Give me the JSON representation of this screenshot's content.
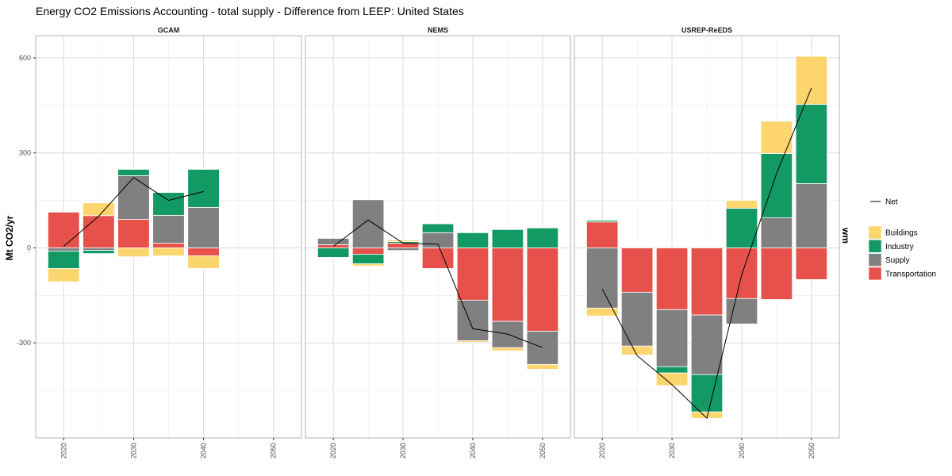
{
  "chart_data": {
    "type": "bar",
    "title": "Energy CO2 Emissions Accounting - total supply  - Difference from LEEP: United States",
    "ylabel": "Mt CO2/yr",
    "right_strip_label": "wm",
    "ylim": [
      -600,
      670
    ],
    "yticks": [
      -300,
      0,
      300,
      600
    ],
    "xlim": [
      2016,
      2054
    ],
    "xticks": [
      2020,
      2030,
      2040,
      2050
    ],
    "xtick_labels": [
      "2020",
      "2030",
      "2040",
      "2050"
    ],
    "grid": true,
    "legend_position": "right",
    "colors": {
      "Buildings": "#FCD56E",
      "Industry": "#139A64",
      "Supply": "#808080",
      "Transportation": "#E6524B",
      "Net": "#000000"
    },
    "legend": {
      "line_entries": [
        "Net"
      ],
      "fill_entries": [
        "Buildings",
        "Industry",
        "Supply",
        "Transportation"
      ]
    },
    "panels": [
      {
        "name": "GCAM",
        "years": [
          2020,
          2025,
          2030,
          2035,
          2040
        ],
        "series": [
          {
            "name": "Transportation",
            "values": [
              113,
              102,
              90,
              15,
              -25
            ]
          },
          {
            "name": "Supply",
            "values": [
              -10,
              -8,
              138,
              88,
              128
            ]
          },
          {
            "name": "Industry",
            "values": [
              -55,
              -10,
              20,
              72,
              120
            ]
          },
          {
            "name": "Buildings",
            "values": [
              -42,
              40,
              -28,
              -25,
              -40
            ]
          }
        ],
        "net": [
          5,
          100,
          222,
          150,
          178
        ]
      },
      {
        "name": "NEMS",
        "years": [
          2020,
          2025,
          2030,
          2035,
          2040,
          2045,
          2050
        ],
        "series": [
          {
            "name": "Transportation",
            "values": [
              10,
              -20,
              15,
              -65,
              -165,
              -232,
              -263
            ]
          },
          {
            "name": "Supply",
            "values": [
              20,
              152,
              -8,
              48,
              -128,
              -83,
              -105
            ]
          },
          {
            "name": "Industry",
            "values": [
              -30,
              -30,
              5,
              28,
              48,
              58,
              63
            ]
          },
          {
            "name": "Buildings",
            "values": [
              0,
              -7,
              5,
              0,
              -5,
              -10,
              -15
            ]
          }
        ],
        "net": [
          5,
          88,
          15,
          12,
          -255,
          -272,
          -315
        ]
      },
      {
        "name": "USREP-ReEDS",
        "years": [
          2020,
          2025,
          2030,
          2035,
          2040,
          2045,
          2050
        ],
        "series": [
          {
            "name": "Transportation",
            "values": [
              82,
              -140,
              -195,
              -212,
              -160,
              -163,
              -100
            ]
          },
          {
            "name": "Supply",
            "values": [
              -190,
              -170,
              -180,
              -188,
              -80,
              95,
              203
            ]
          },
          {
            "name": "Industry",
            "values": [
              5,
              0,
              -20,
              -118,
              125,
              203,
              250
            ]
          },
          {
            "name": "Buildings",
            "values": [
              -25,
              -28,
              -40,
              -20,
              25,
              102,
              152
            ]
          }
        ],
        "net": [
          -130,
          -340,
          -432,
          -538,
          -85,
          235,
          505
        ]
      }
    ]
  }
}
